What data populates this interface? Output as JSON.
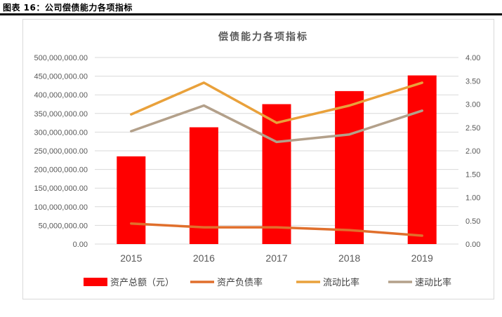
{
  "figure_label": "图表 16：公司偿债能力各项指标",
  "chart_data": {
    "type": "bar",
    "title": "偿债能力各项指标",
    "categories": [
      "2015",
      "2016",
      "2017",
      "2018",
      "2019"
    ],
    "left_axis": {
      "ylim": [
        0,
        500000000
      ],
      "ticks": [
        "0.00",
        "50,000,000.00",
        "100,000,000.00",
        "150,000,000.00",
        "200,000,000.00",
        "250,000,000.00",
        "300,000,000.00",
        "350,000,000.00",
        "400,000,000.00",
        "450,000,000.00",
        "500,000,000.00"
      ]
    },
    "right_axis": {
      "ylim": [
        0,
        4
      ],
      "ticks": [
        "0.00",
        "0.50",
        "1.00",
        "1.50",
        "2.00",
        "2.50",
        "3.00",
        "3.50",
        "4.00"
      ]
    },
    "series": [
      {
        "name": "资产总额（元）",
        "type": "bar",
        "axis": "left",
        "color": "#ff0000",
        "values": [
          235000000,
          313000000,
          375000000,
          410000000,
          452000000
        ]
      },
      {
        "name": "资产负债率",
        "type": "line",
        "axis": "right",
        "color": "#e06f2c",
        "values": [
          0.44,
          0.36,
          0.36,
          0.3,
          0.18
        ]
      },
      {
        "name": "流动比率",
        "type": "line",
        "axis": "right",
        "color": "#e9a13b",
        "values": [
          2.78,
          3.46,
          2.6,
          2.97,
          3.46
        ]
      },
      {
        "name": "速动比率",
        "type": "line",
        "axis": "right",
        "color": "#b3a08a",
        "values": [
          2.42,
          2.97,
          2.19,
          2.35,
          2.86
        ]
      }
    ],
    "grid": true,
    "legend_position": "bottom"
  }
}
